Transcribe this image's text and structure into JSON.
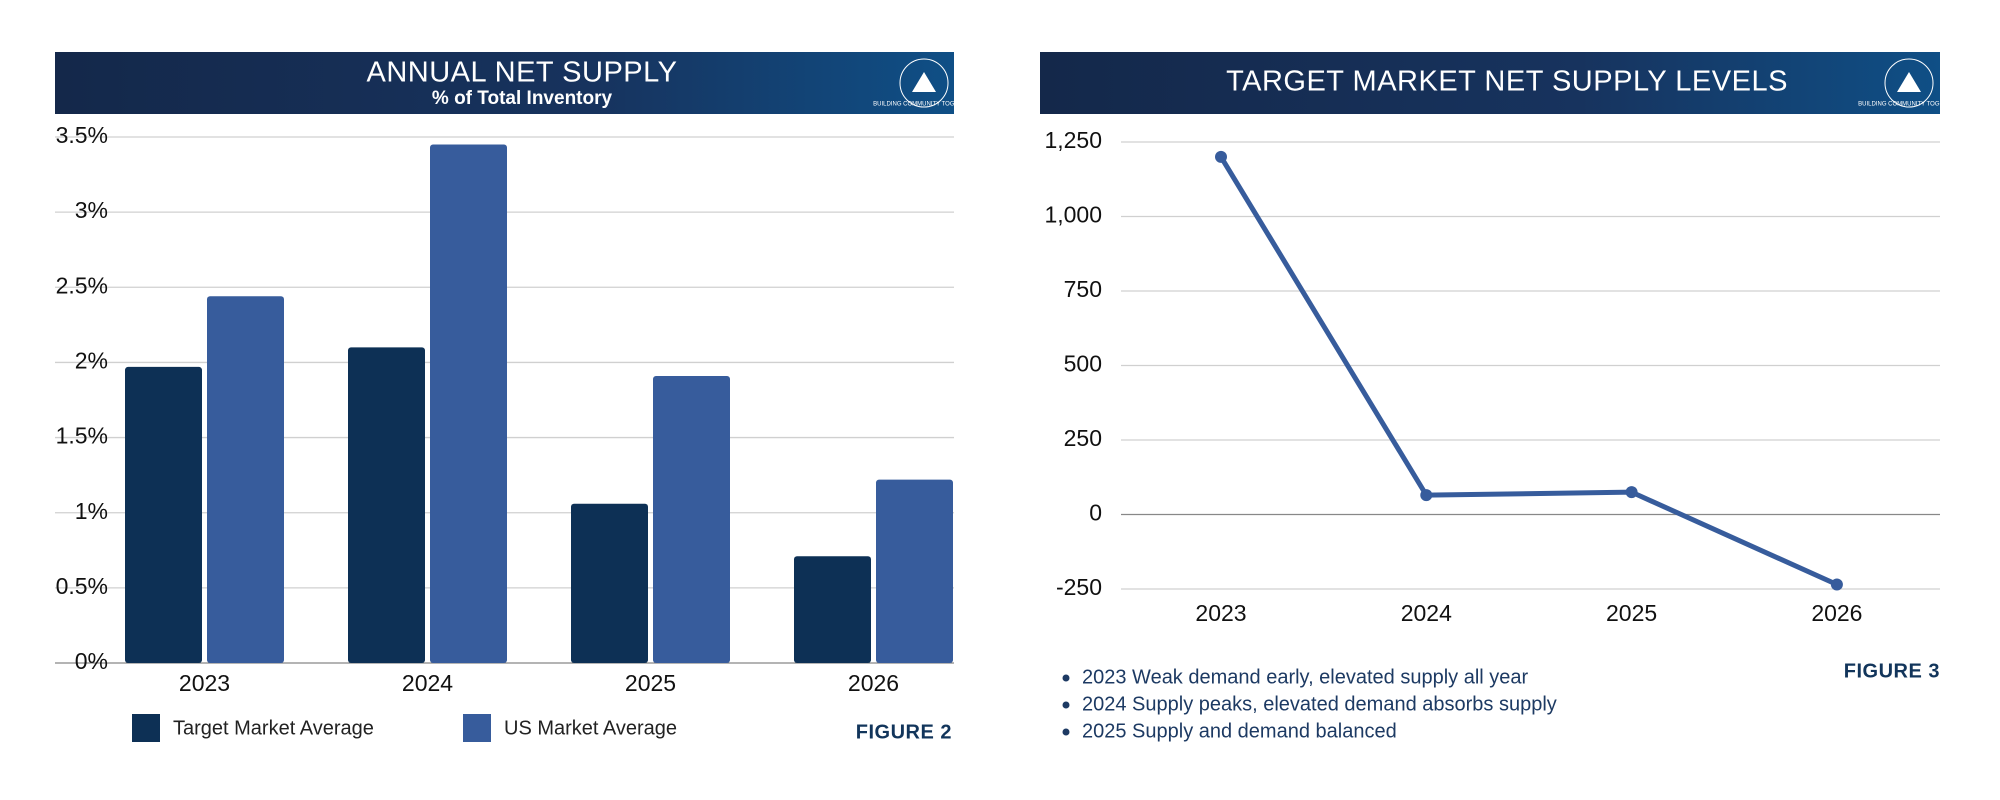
{
  "logo": {
    "text": "BUILDING COMMUNITY TOGETHER"
  },
  "chart_data": [
    {
      "type": "bar",
      "title": "ANNUAL NET SUPPLY",
      "subtitle": "% of Total Inventory",
      "categories": [
        "2023",
        "2024",
        "2025",
        "2026"
      ],
      "series": [
        {
          "name": "Target Market Average",
          "color": "#0d3055",
          "values": [
            1.97,
            2.1,
            1.06,
            0.71
          ]
        },
        {
          "name": "US Market Average",
          "color": "#375c9c",
          "values": [
            2.44,
            3.45,
            1.91,
            1.22
          ]
        }
      ],
      "ylim": [
        0,
        3.5
      ],
      "yticks": [
        {
          "value": 0,
          "label": "0%"
        },
        {
          "value": 0.5,
          "label": "0.5%"
        },
        {
          "value": 1,
          "label": "1%"
        },
        {
          "value": 1.5,
          "label": "1.5%"
        },
        {
          "value": 2,
          "label": "2%"
        },
        {
          "value": 2.5,
          "label": "2.5%"
        },
        {
          "value": 3,
          "label": "3%"
        },
        {
          "value": 3.5,
          "label": "3.5%"
        }
      ],
      "grid": true,
      "legend": "bottom-left",
      "annotation": "FIGURE 2"
    },
    {
      "type": "line",
      "title": "TARGET MARKET NET SUPPLY LEVELS",
      "categories": [
        "2023",
        "2024",
        "2025",
        "2026"
      ],
      "values": [
        1200,
        65,
        75,
        -235
      ],
      "color": "#375c9c",
      "ylim": [
        -250,
        1250
      ],
      "yticks": [
        -250,
        0,
        250,
        500,
        750,
        {
          "value": 1000,
          "label": "1,000"
        },
        {
          "value": 1250,
          "label": "1,250"
        }
      ],
      "grid": true,
      "annotation": "FIGURE 3",
      "notes": [
        "2023 Weak demand early, elevated supply all year",
        "2024 Supply peaks, elevated demand absorbs supply",
        "2025 Supply and demand balanced"
      ]
    }
  ]
}
